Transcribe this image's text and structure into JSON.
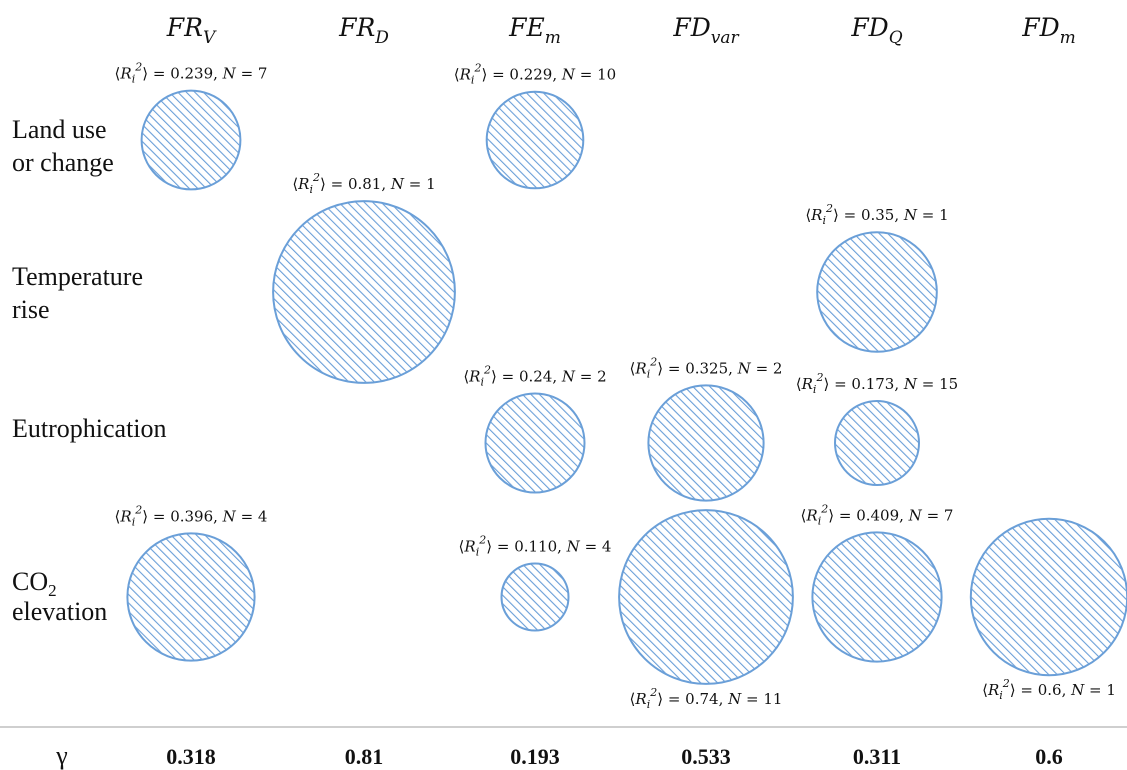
{
  "chart_data": {
    "type": "bubble-matrix",
    "columns": [
      {
        "id": "FRV",
        "base": "FR",
        "sub": "V"
      },
      {
        "id": "FRD",
        "base": "FR",
        "sub": "D"
      },
      {
        "id": "FEm",
        "base": "FE",
        "sub": "m"
      },
      {
        "id": "FDvar",
        "base": "FD",
        "sub": "var"
      },
      {
        "id": "FDQ",
        "base": "FD",
        "sub": "Q"
      },
      {
        "id": "FDm",
        "base": "FD",
        "sub": "m"
      }
    ],
    "rows": [
      {
        "id": "land",
        "lines": [
          "Land use",
          "or change"
        ]
      },
      {
        "id": "temp",
        "lines": [
          "Temperature",
          "rise"
        ]
      },
      {
        "id": "eutro",
        "lines": [
          "Eutrophication"
        ]
      },
      {
        "id": "co2",
        "lines": [
          "CO2",
          "elevation"
        ],
        "subscript_line": 0,
        "base": "CO",
        "sub": "2"
      }
    ],
    "points": [
      {
        "row": "land",
        "col": "FRV",
        "r2": "0.239",
        "n": "7",
        "label_pos": "above"
      },
      {
        "row": "land",
        "col": "FEm",
        "r2": "0.229",
        "n": "10",
        "label_pos": "above"
      },
      {
        "row": "temp",
        "col": "FRD",
        "r2": "0.81",
        "n": "1",
        "label_pos": "above"
      },
      {
        "row": "temp",
        "col": "FDQ",
        "r2": "0.35",
        "n": "1",
        "label_pos": "above"
      },
      {
        "row": "eutro",
        "col": "FEm",
        "r2": "0.24",
        "n": "2",
        "label_pos": "above"
      },
      {
        "row": "eutro",
        "col": "FDvar",
        "r2": "0.325",
        "n": "2",
        "label_pos": "above"
      },
      {
        "row": "eutro",
        "col": "FDQ",
        "r2": "0.173",
        "n": "15",
        "label_pos": "above"
      },
      {
        "row": "co2",
        "col": "FRV",
        "r2": "0.396",
        "n": "4",
        "label_pos": "above"
      },
      {
        "row": "co2",
        "col": "FEm",
        "r2": "0.110",
        "n": "4",
        "label_pos": "above"
      },
      {
        "row": "co2",
        "col": "FDvar",
        "r2": "0.74",
        "n": "11",
        "label_pos": "below"
      },
      {
        "row": "co2",
        "col": "FDQ",
        "r2": "0.409",
        "n": "7",
        "label_pos": "above"
      },
      {
        "row": "co2",
        "col": "FDm",
        "r2": "0.6",
        "n": "1",
        "label_pos": "below"
      }
    ],
    "gamma": {
      "symbol": "γ",
      "values": [
        "0.318",
        "0.81",
        "0.193",
        "0.533",
        "0.311",
        "0.6"
      ]
    },
    "colors": {
      "bubble_stroke": "#6a9fd8",
      "hatch": "#6a9fd8",
      "fill": "#ffffff",
      "divider": "#bfbfbf"
    }
  }
}
